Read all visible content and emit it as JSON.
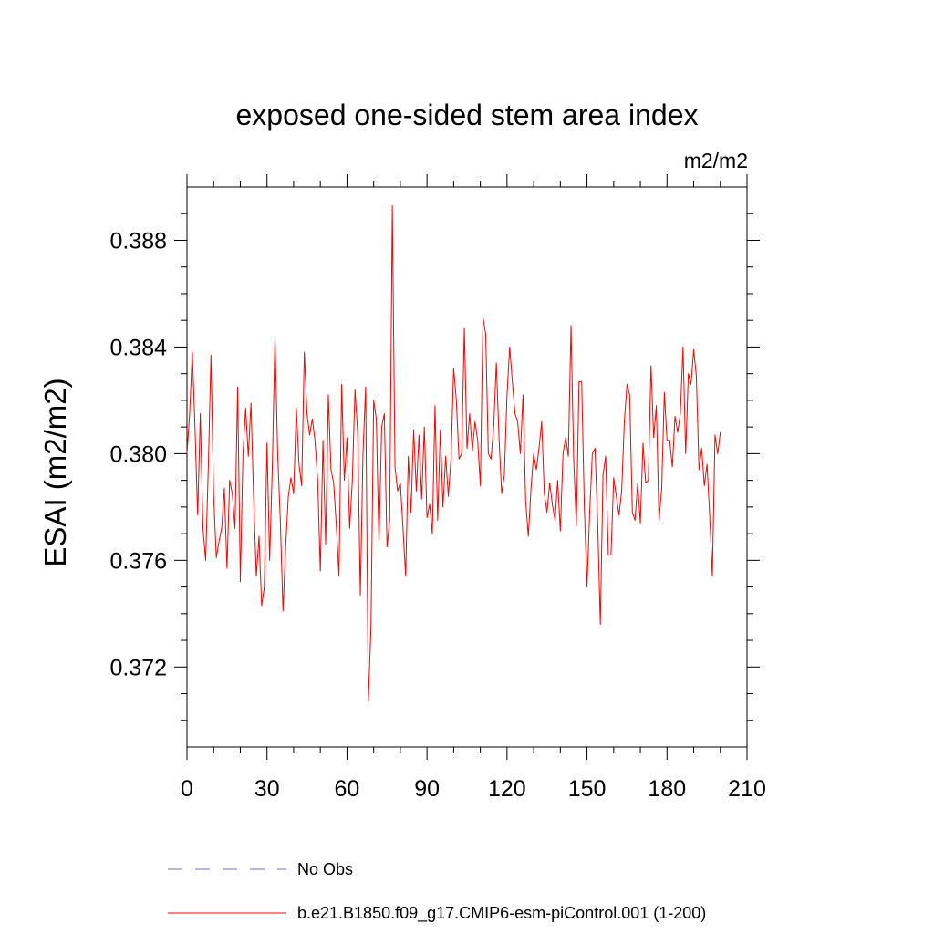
{
  "chart_data": {
    "type": "line",
    "title": "exposed one-sided stem area index",
    "units": "m2/m2",
    "ylabel": "ESAI  (m2/m2)",
    "xlabel": "",
    "xlim": [
      0,
      210
    ],
    "ylim": [
      0.369,
      0.39
    ],
    "xticks": [
      0,
      30,
      60,
      90,
      120,
      150,
      180,
      210
    ],
    "xtick_labels": [
      "0",
      "30",
      "60",
      "90",
      "120",
      "150",
      "180",
      "210"
    ],
    "yticks": [
      0.372,
      0.376,
      0.38,
      0.384,
      0.388
    ],
    "ytick_labels": [
      "0.372",
      "0.376",
      "0.380",
      "0.384",
      "0.388"
    ],
    "grid": false,
    "legend_position": "bottom",
    "series": [
      {
        "name": "No Obs",
        "color": "#7b68c8",
        "dash": "dashed",
        "x": [],
        "values": []
      },
      {
        "name": "b.e21.B1850.f09_g17.CMIP6-esm-piControl.001 (1-200)",
        "color": "#ff0000",
        "dash": "solid",
        "x": [
          0,
          1,
          2,
          3,
          4,
          5,
          6,
          7,
          8,
          9,
          10,
          11,
          12,
          13,
          14,
          15,
          16,
          17,
          18,
          19,
          20,
          21,
          22,
          23,
          24,
          25,
          26,
          27,
          28,
          29,
          30,
          31,
          32,
          33,
          34,
          35,
          36,
          37,
          38,
          39,
          40,
          41,
          42,
          43,
          44,
          45,
          46,
          47,
          48,
          49,
          50,
          51,
          52,
          53,
          54,
          55,
          56,
          57,
          58,
          59,
          60,
          61,
          62,
          63,
          64,
          65,
          66,
          67,
          68,
          69,
          70,
          71,
          72,
          73,
          74,
          75,
          76,
          77,
          78,
          79,
          80,
          81,
          82,
          83,
          84,
          85,
          86,
          87,
          88,
          89,
          90,
          91,
          92,
          93,
          94,
          95,
          96,
          97,
          98,
          99,
          100,
          101,
          102,
          103,
          104,
          105,
          106,
          107,
          108,
          109,
          110,
          111,
          112,
          113,
          114,
          115,
          116,
          117,
          118,
          119,
          120,
          121,
          122,
          123,
          124,
          125,
          126,
          127,
          128,
          129,
          130,
          131,
          132,
          133,
          134,
          135,
          136,
          137,
          138,
          139,
          140,
          141,
          142,
          143,
          144,
          145,
          146,
          147,
          148,
          149,
          150,
          151,
          152,
          153,
          154,
          155,
          156,
          157,
          158,
          159,
          160,
          161,
          162,
          163,
          164,
          165,
          166,
          167,
          168,
          169,
          170,
          171,
          172,
          173,
          174,
          175,
          176,
          177,
          178,
          179,
          180,
          181,
          182,
          183,
          184,
          185,
          186,
          187,
          188,
          189,
          190,
          191,
          192,
          193,
          194,
          195,
          196,
          197,
          198,
          199,
          200
        ],
        "values": [
          0.38,
          0.3815,
          0.3838,
          0.381,
          0.3777,
          0.3815,
          0.3772,
          0.376,
          0.3795,
          0.3837,
          0.3784,
          0.3761,
          0.3767,
          0.3772,
          0.3787,
          0.3757,
          0.379,
          0.3785,
          0.3772,
          0.3825,
          0.3752,
          0.38,
          0.3817,
          0.3799,
          0.3819,
          0.3783,
          0.3754,
          0.3769,
          0.3743,
          0.375,
          0.3804,
          0.376,
          0.3795,
          0.3844,
          0.38,
          0.3775,
          0.3741,
          0.3765,
          0.3784,
          0.3791,
          0.3785,
          0.3817,
          0.3796,
          0.3788,
          0.3838,
          0.3815,
          0.3807,
          0.3813,
          0.3805,
          0.379,
          0.3756,
          0.3805,
          0.3766,
          0.3822,
          0.3794,
          0.3789,
          0.3773,
          0.3754,
          0.3826,
          0.379,
          0.3806,
          0.3772,
          0.379,
          0.3824,
          0.3808,
          0.3747,
          0.38,
          0.3825,
          0.3707,
          0.3735,
          0.382,
          0.3813,
          0.3766,
          0.381,
          0.3815,
          0.3765,
          0.3775,
          0.3893,
          0.3795,
          0.3786,
          0.3789,
          0.3772,
          0.3754,
          0.3799,
          0.3778,
          0.3809,
          0.3786,
          0.3807,
          0.3783,
          0.381,
          0.3776,
          0.3781,
          0.377,
          0.3818,
          0.3775,
          0.3809,
          0.378,
          0.3799,
          0.3784,
          0.3798,
          0.3832,
          0.382,
          0.3798,
          0.38,
          0.3847,
          0.3802,
          0.3815,
          0.3801,
          0.3812,
          0.3805,
          0.3788,
          0.3851,
          0.3845,
          0.38,
          0.3798,
          0.381,
          0.3834,
          0.3806,
          0.3785,
          0.3792,
          0.3822,
          0.384,
          0.3827,
          0.3815,
          0.3812,
          0.38,
          0.3822,
          0.3782,
          0.3769,
          0.3787,
          0.38,
          0.3794,
          0.3802,
          0.3812,
          0.3785,
          0.3778,
          0.3789,
          0.3781,
          0.3775,
          0.379,
          0.3771,
          0.38,
          0.3806,
          0.3799,
          0.3848,
          0.3798,
          0.3773,
          0.3827,
          0.3827,
          0.378,
          0.375,
          0.3778,
          0.38,
          0.3802,
          0.3774,
          0.3736,
          0.3792,
          0.3799,
          0.3762,
          0.3762,
          0.3791,
          0.3784,
          0.3777,
          0.3786,
          0.3812,
          0.3826,
          0.3822,
          0.3778,
          0.3775,
          0.3789,
          0.3774,
          0.3804,
          0.3789,
          0.379,
          0.3833,
          0.3806,
          0.3818,
          0.3775,
          0.3787,
          0.3823,
          0.3805,
          0.3805,
          0.3795,
          0.3814,
          0.3808,
          0.3815,
          0.384,
          0.38,
          0.383,
          0.3826,
          0.3839,
          0.3829,
          0.3794,
          0.3802,
          0.3788,
          0.3796,
          0.3777,
          0.3754,
          0.3807,
          0.38,
          0.3808
        ]
      }
    ]
  }
}
